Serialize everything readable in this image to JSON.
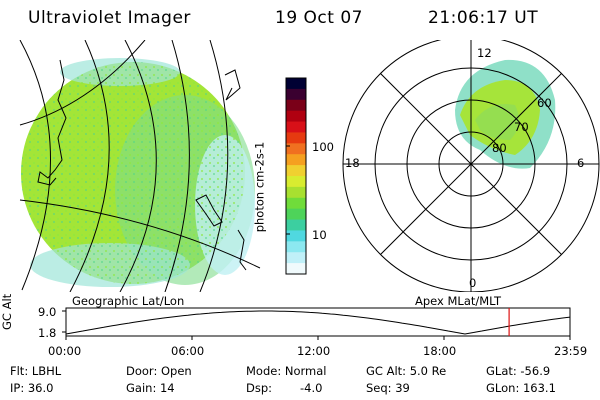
{
  "header": {
    "instrument": "Ultraviolet Imager",
    "date": "19 Oct 07",
    "time": "21:06:17 UT"
  },
  "colorbar": {
    "unit_label": "photon cm-2s-1",
    "ticks": [
      "100",
      "10"
    ],
    "colors": [
      "#000033",
      "#3a0030",
      "#7a0018",
      "#b00010",
      "#d81018",
      "#e63a10",
      "#f07020",
      "#f5a020",
      "#f0d030",
      "#d8ec30",
      "#a8e030",
      "#70dc3a",
      "#4ed35a",
      "#3ccfa0",
      "#50d8e0",
      "#8ce8f0",
      "#c0f0f8",
      "#f0fafc"
    ]
  },
  "maps": {
    "left_caption": "Geographic Lat/Lon",
    "right_caption": "Apex MLat/MLT",
    "polar_labels": {
      "top": "12",
      "bottom": "0",
      "left": "18",
      "right": "6",
      "lat_60": "60",
      "lat_70": "70",
      "lat_80": "80"
    }
  },
  "altitude_plot": {
    "ylabel": "GC Alt",
    "y_ticks": [
      "9.0",
      "1.8"
    ],
    "x_ticks": [
      "00:00",
      "06:00",
      "12:00",
      "18:00",
      "23:59"
    ],
    "cursor_hour": 21.1,
    "accent_color": "#dd1111"
  },
  "info": {
    "flt": "Flt: LBHL",
    "ip": "IP: 36.0",
    "door": "Door: Open",
    "gain": "Gain: 14",
    "mode": "Mode: Normal",
    "dsp": "Dsp:",
    "dsp_value": "-4.0",
    "gc_alt": "GC Alt: 5.0 Re",
    "seq": "Seq: 39",
    "glat": "GLat: -56.9",
    "glon": "GLon: 163.1"
  }
}
